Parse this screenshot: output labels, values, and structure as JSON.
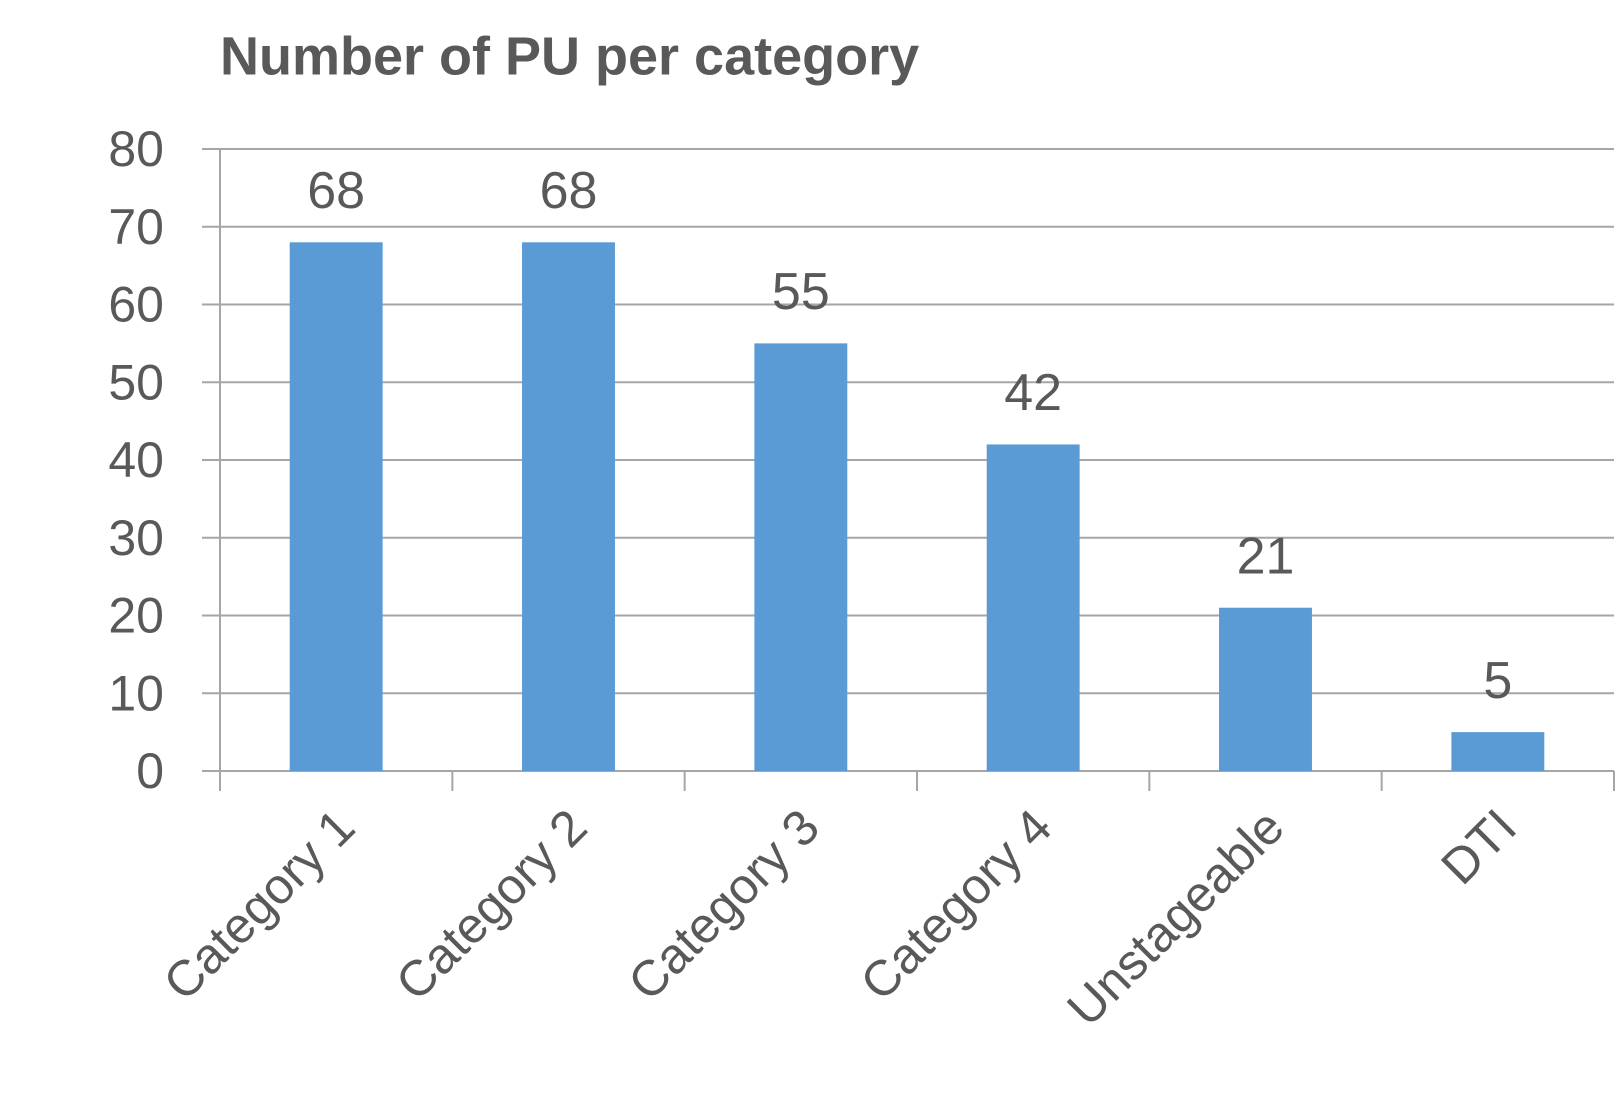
{
  "chart_data": {
    "type": "bar",
    "title": "Number of PU per category",
    "categories": [
      "Category 1",
      "Category 2",
      "Category 3",
      "Category 4",
      "Unstageable",
      "DTI"
    ],
    "values": [
      68,
      68,
      55,
      42,
      21,
      5
    ],
    "color": "#5b9bd5",
    "ylim": [
      0,
      80
    ],
    "yticks": [
      0,
      10,
      20,
      30,
      40,
      50,
      60,
      70,
      80
    ],
    "grid": true
  }
}
